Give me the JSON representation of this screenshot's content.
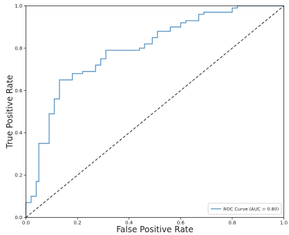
{
  "chart_data": {
    "type": "line",
    "xlabel": "False Positive Rate",
    "ylabel": "True Positive Rate",
    "xlim": [
      0.0,
      1.0
    ],
    "ylim": [
      0.0,
      1.0
    ],
    "x_ticks": [
      "0.0",
      "0.2",
      "0.4",
      "0.6",
      "0.8",
      "1.0"
    ],
    "y_ticks": [
      "0.0",
      "0.2",
      "0.4",
      "0.6",
      "0.8",
      "1.0"
    ],
    "grid": false,
    "legend_position": "bottom-right",
    "series": [
      {
        "name": "ROC Curve (AUC = 0.80)",
        "style": "step",
        "color": "#5a95c4",
        "x": [
          0.0,
          0.0,
          0.02,
          0.02,
          0.04,
          0.04,
          0.05,
          0.05,
          0.09,
          0.09,
          0.11,
          0.11,
          0.13,
          0.13,
          0.18,
          0.18,
          0.22,
          0.22,
          0.27,
          0.27,
          0.29,
          0.29,
          0.31,
          0.31,
          0.44,
          0.44,
          0.46,
          0.46,
          0.49,
          0.49,
          0.51,
          0.51,
          0.56,
          0.56,
          0.6,
          0.6,
          0.62,
          0.62,
          0.67,
          0.67,
          0.69,
          0.69,
          0.8,
          0.8,
          0.82,
          0.82,
          1.0
        ],
        "y": [
          0.0,
          0.07,
          0.07,
          0.1,
          0.1,
          0.17,
          0.17,
          0.35,
          0.35,
          0.49,
          0.49,
          0.56,
          0.56,
          0.65,
          0.65,
          0.68,
          0.68,
          0.69,
          0.69,
          0.72,
          0.72,
          0.75,
          0.75,
          0.79,
          0.79,
          0.8,
          0.8,
          0.82,
          0.82,
          0.85,
          0.85,
          0.88,
          0.88,
          0.9,
          0.9,
          0.92,
          0.92,
          0.93,
          0.93,
          0.96,
          0.96,
          0.97,
          0.97,
          0.99,
          0.99,
          1.0,
          1.0
        ]
      },
      {
        "style": "dashed",
        "color": "#222222",
        "x": [
          0.0,
          1.0
        ],
        "y": [
          0.0,
          1.0
        ]
      }
    ]
  }
}
